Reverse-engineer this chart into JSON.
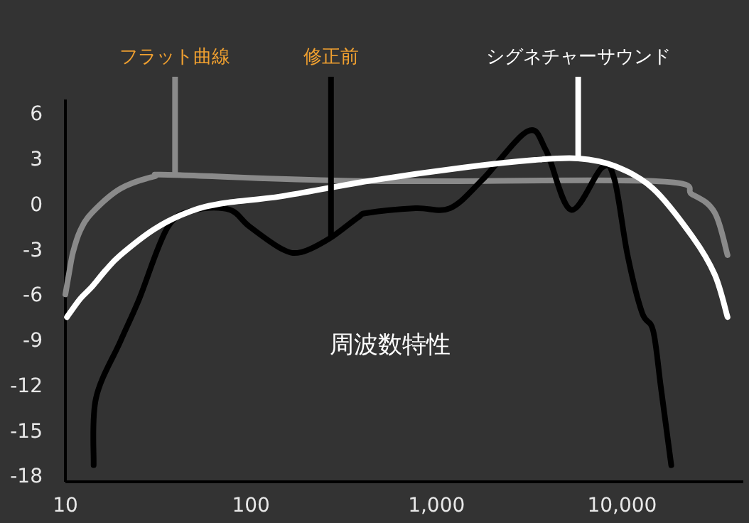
{
  "chart_data": {
    "type": "line",
    "log": "x",
    "xlim": [
      10,
      45000
    ],
    "ylim": [
      -18.4,
      6.9
    ],
    "xticks": [
      10,
      100,
      {
        "value": 1000,
        "label": "1,000"
      },
      {
        "value": 10000,
        "label": "10,000"
      }
    ],
    "yticks": [
      6,
      3,
      0,
      -3,
      -6,
      -9,
      -12,
      -15,
      -18
    ],
    "series": [
      {
        "color": "#8a8a8a",
        "x": [
          10,
          10.5,
          11,
          12,
          13.9,
          19.8,
          30,
          39,
          427,
          14700,
          24000,
          31600,
          37000
        ],
        "values": [
          -6,
          -4.5,
          -3.2,
          -1.8,
          -0.6,
          1,
          1.8,
          1.9,
          1.5,
          1.5,
          0.6,
          -0.6,
          -3.4
        ]
      },
      {
        "color": "#000000",
        "x": [
          14.2,
          14.6,
          19.8,
          25,
          35.8,
          51,
          77,
          98,
          147,
          187,
          265,
          378,
          427,
          770,
          1180,
          1770,
          3100,
          3900,
          5300,
          7800,
          9100,
          10700,
          12800,
          14700,
          16200,
          18400
        ],
        "values": [
          -17.3,
          -12.9,
          -9.1,
          -6.3,
          -1.5,
          -0.4,
          -0.4,
          -1.5,
          -3,
          -3.2,
          -2.3,
          -0.9,
          -0.6,
          -0.3,
          -0.3,
          1.6,
          4.8,
          3.5,
          -0.4,
          2.4,
          1.6,
          -3.4,
          -7.2,
          -8.4,
          -12.2,
          -17.3
        ]
      },
      {
        "color": "#ffffff",
        "x": [
          10.2,
          12,
          13.9,
          16.5,
          19.8,
          30,
          45,
          68,
          147,
          427,
          1400,
          3400,
          5800,
          9100,
          14700,
          24000,
          31600,
          37000
        ],
        "values": [
          -7.5,
          -6.3,
          -5.5,
          -4.4,
          -3.4,
          -1.7,
          -0.6,
          0,
          0.5,
          1.5,
          2.4,
          2.9,
          3,
          2.5,
          1,
          -2.2,
          -4.7,
          -7.5
        ]
      }
    ],
    "annotations": [
      {
        "text": "フラット曲線",
        "x": 39,
        "y": 1.9
      },
      {
        "text": "修正前",
        "x": 270,
        "y": -2.3
      },
      {
        "text": "シグネチャーサウンド",
        "x": 5800,
        "y": 3
      },
      "周波数特性"
    ]
  }
}
